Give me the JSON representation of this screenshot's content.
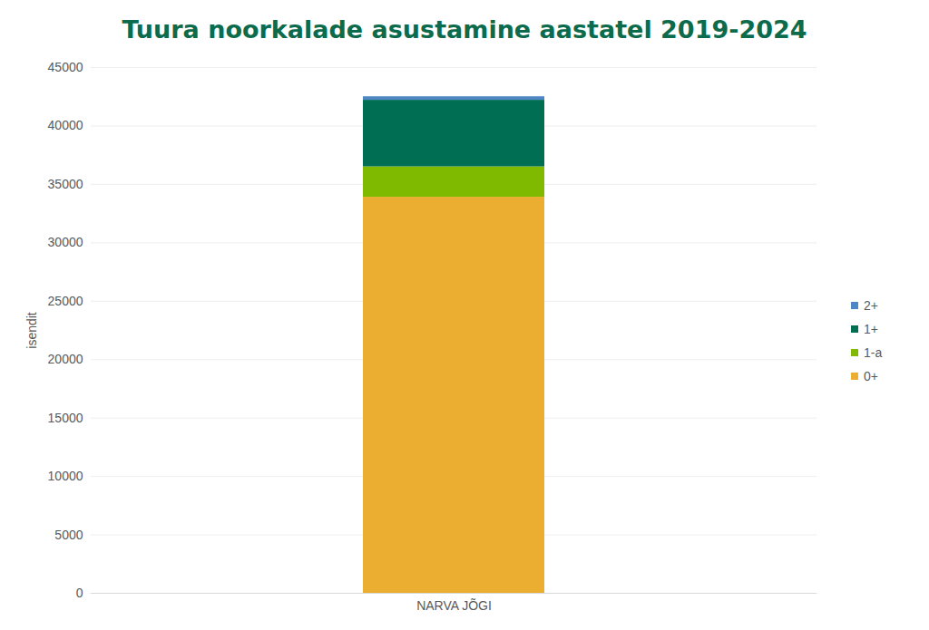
{
  "chart_data": {
    "type": "bar",
    "title": "Tuura noorkalade asustamine aastatel 2019-2024",
    "y_label": "isendit",
    "categories": [
      "NARVA JÕGI"
    ],
    "stacked": true,
    "series": [
      {
        "name": "0+",
        "color": "#ebae30",
        "values": [
          33900
        ]
      },
      {
        "name": "1-a",
        "color": "#80ba00",
        "values": [
          2600
        ]
      },
      {
        "name": "1+",
        "color": "#006e52",
        "values": [
          5700
        ]
      },
      {
        "name": "2+",
        "color": "#4f86c6",
        "values": [
          300
        ]
      }
    ],
    "ylim": [
      0,
      45000
    ],
    "yticks": [
      0,
      5000,
      10000,
      15000,
      20000,
      25000,
      30000,
      35000,
      40000,
      45000
    ],
    "grid": true,
    "legend": "right"
  }
}
